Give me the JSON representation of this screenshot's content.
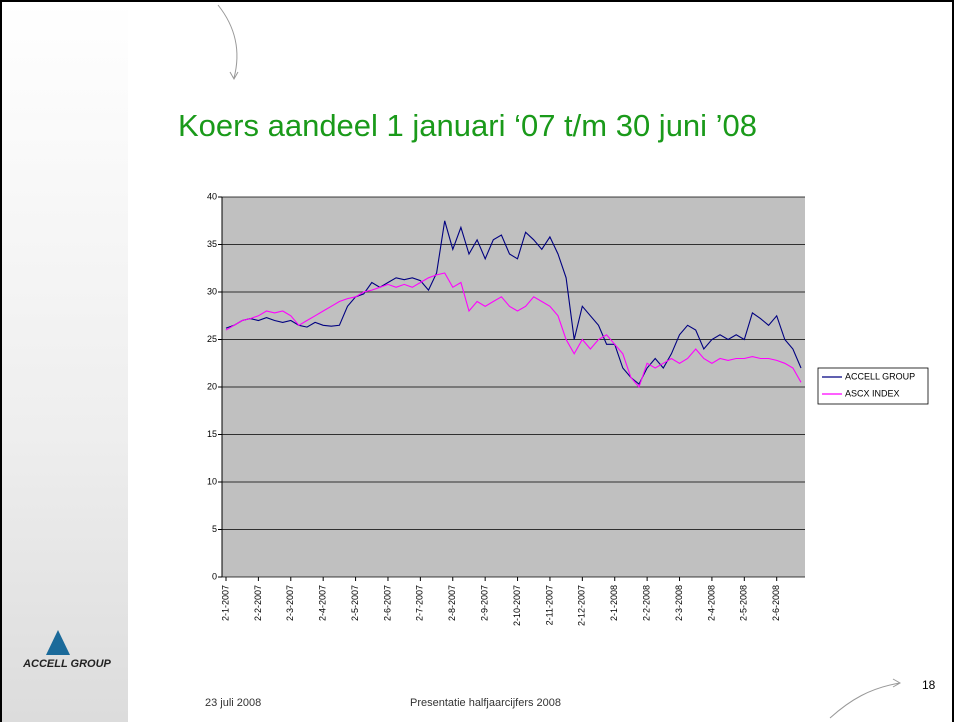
{
  "chart_data": {
    "type": "line",
    "title": "Koers aandeel 1 januari ‘07 t/m 30 juni ’08",
    "categories": [
      "2-1-2007",
      null,
      null,
      null,
      "2-2-2007",
      null,
      null,
      null,
      "2-3-2007",
      null,
      null,
      null,
      "2-4-2007",
      null,
      null,
      null,
      "2-5-2007",
      null,
      null,
      null,
      "2-6-2007",
      null,
      null,
      null,
      "2-7-2007",
      null,
      null,
      null,
      "2-8-2007",
      null,
      null,
      null,
      "2-9-2007",
      null,
      null,
      null,
      "2-10-2007",
      null,
      null,
      null,
      "2-11-2007",
      null,
      null,
      null,
      "2-12-2007",
      null,
      null,
      null,
      "2-1-2008",
      null,
      null,
      null,
      "2-2-2008",
      null,
      null,
      null,
      "2-3-2008",
      null,
      null,
      null,
      "2-4-2008",
      null,
      null,
      null,
      "2-5-2008",
      null,
      null,
      null,
      "2-6-2008",
      null,
      null,
      null
    ],
    "series": [
      {
        "name": "ACCELL GROUP",
        "color": "#000080",
        "values": [
          26.2,
          26.5,
          27,
          27.2,
          27,
          27.3,
          27,
          26.8,
          27,
          26.5,
          26.3,
          26.8,
          26.5,
          26.4,
          26.5,
          28.5,
          29.5,
          29.8,
          31,
          30.5,
          31,
          31.5,
          31.3,
          31.5,
          31.2,
          30.2,
          32,
          37.5,
          34.5,
          36.8,
          34,
          35.5,
          33.5,
          35.5,
          36,
          34,
          33.5,
          36.3,
          35.5,
          34.5,
          35.8,
          34,
          31.5,
          25,
          28.5,
          27.5,
          26.5,
          24.5,
          24.5,
          22,
          21,
          20.3,
          22,
          23,
          22,
          23.5,
          25.5,
          26.5,
          26,
          24,
          25,
          25.5,
          25,
          25.5,
          25,
          27.8,
          27.2,
          26.5,
          27.5,
          25,
          24,
          22
        ]
      },
      {
        "name": "ASCX INDEX",
        "color": "#ff00ff",
        "values": [
          26,
          26.5,
          27,
          27.2,
          27.5,
          28,
          27.8,
          28,
          27.5,
          26.5,
          27,
          27.5,
          28,
          28.5,
          29,
          29.3,
          29.5,
          30,
          30.2,
          30.5,
          30.8,
          30.5,
          30.8,
          30.5,
          31,
          31.5,
          31.8,
          32,
          30.5,
          31,
          28,
          29,
          28.5,
          29,
          29.5,
          28.5,
          28,
          28.5,
          29.5,
          29,
          28.5,
          27.5,
          25,
          23.5,
          25,
          24,
          25,
          25.5,
          24.5,
          23.5,
          21,
          20,
          22.5,
          22,
          22.5,
          23,
          22.5,
          23,
          24,
          23,
          22.5,
          23,
          22.8,
          23,
          23,
          23.2,
          23,
          23,
          22.8,
          22.5,
          22,
          20.5
        ]
      }
    ],
    "ylim": [
      0,
      40
    ],
    "yticks": [
      0,
      5,
      10,
      15,
      20,
      25,
      30,
      35,
      40
    ],
    "grid": true,
    "legend": "right"
  },
  "footer": {
    "date": "23 juli 2008",
    "text": "Presentatie halfjaarcijfers 2008",
    "page": "18"
  },
  "logo": {
    "name": "ACCELL GROUP"
  }
}
